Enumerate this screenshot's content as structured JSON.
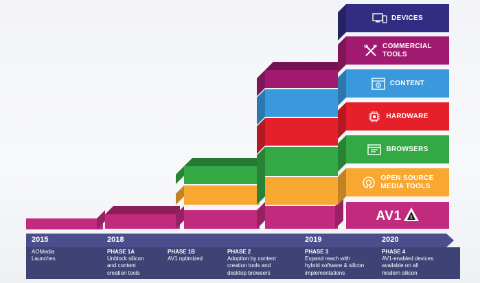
{
  "colors": {
    "av1": "#c22a7d",
    "open_source_media_tools": "#f8a830",
    "browsers": "#34a844",
    "hardware": "#e5202a",
    "content": "#3a98dd",
    "commercial_tools": "#a01b70",
    "devices": "#322c82",
    "timeline": "#3f4275"
  },
  "layers": [
    {
      "label": "DEVICES",
      "icon": "devices-icon",
      "color": "#322c82"
    },
    {
      "label": "COMMERCIAL\nTOOLS",
      "icon": "tools-icon",
      "color": "#a01b70"
    },
    {
      "label": "CONTENT",
      "icon": "content-icon",
      "color": "#3a98dd"
    },
    {
      "label": "HARDWARE",
      "icon": "chip-icon",
      "color": "#e5202a"
    },
    {
      "label": "BROWSERS",
      "icon": "browser-icon",
      "color": "#34a844"
    },
    {
      "label": "OPEN SOURCE\nMEDIA TOOLS",
      "icon": "open-source-icon",
      "color": "#f8a830"
    },
    {
      "label": "AV1",
      "icon": "av1-logo",
      "color": "#c22a7d"
    }
  ],
  "timeline": {
    "years": [
      "2015",
      "2018",
      "2019",
      "2020"
    ],
    "phases": [
      {
        "title": "",
        "desc": "AOMedia\nLaunches"
      },
      {
        "title": "PHASE 1A",
        "desc": "Unblock silicon\nand content\ncreation tools"
      },
      {
        "title": "PHASE 1B",
        "desc": "AV1 optimized"
      },
      {
        "title": "PHASE 2",
        "desc": "Adoption by content\ncreation tools and\ndesktop browsers"
      },
      {
        "title": "PHASE 3",
        "desc": "Expand reach with\nhybrid software & silicon\nimplementations"
      },
      {
        "title": "PHASE 4",
        "desc": "AV1-enabled devices\navailable on all\nmodern silicon"
      }
    ]
  }
}
